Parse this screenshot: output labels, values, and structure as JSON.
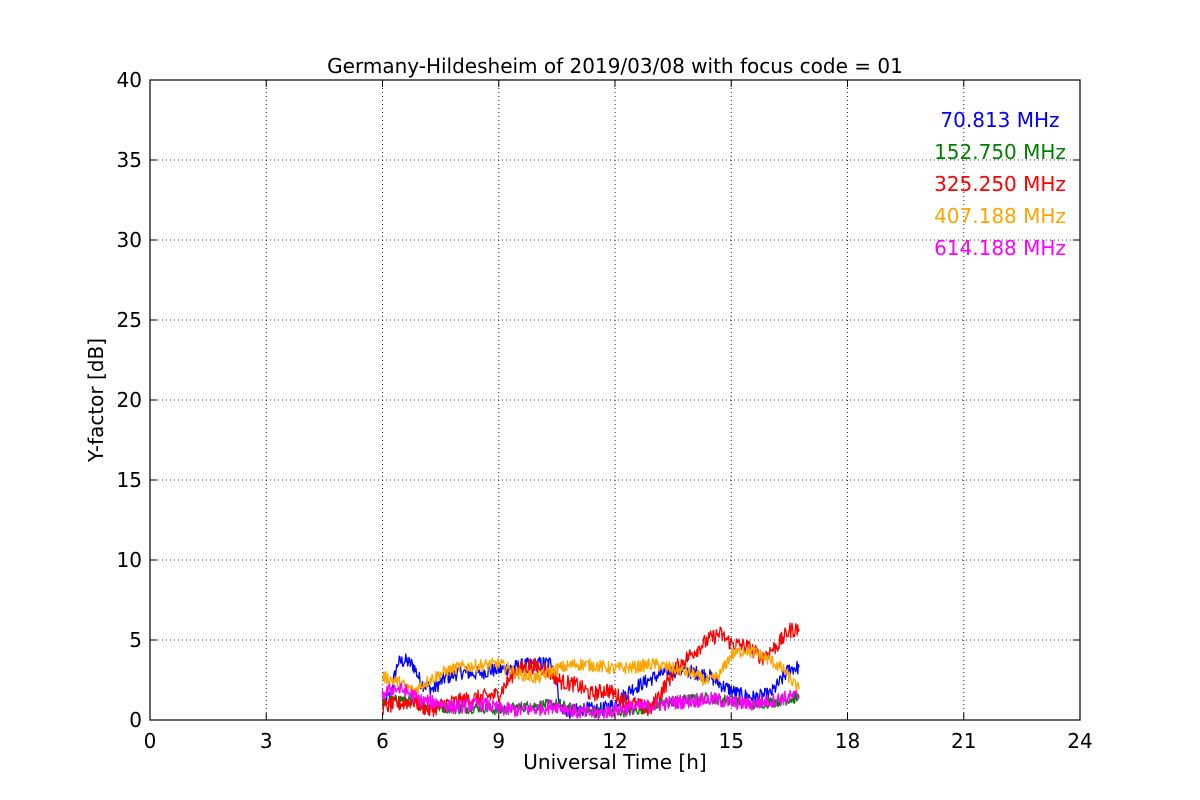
{
  "chart_data": {
    "type": "line",
    "title": "Germany-Hildesheim of 2019/03/08 with focus code = 01",
    "xlabel": "Universal Time [h]",
    "ylabel": "Y-factor [dB]",
    "xlim": [
      0,
      24
    ],
    "ylim": [
      0,
      40
    ],
    "xticks": [
      0,
      3,
      6,
      9,
      12,
      15,
      18,
      21,
      24
    ],
    "yticks": [
      0,
      5,
      10,
      15,
      20,
      25,
      30,
      35,
      40
    ],
    "grid": true,
    "legend_position": "top-right",
    "series": [
      {
        "name": "70.813 MHz",
        "color": "#0000ff",
        "x": [
          6.0,
          6.2,
          6.4,
          6.6,
          6.8,
          7.0,
          7.3,
          7.6,
          8.0,
          8.4,
          8.8,
          9.2,
          9.6,
          10.0,
          10.4,
          10.6,
          10.8,
          11.2,
          11.6,
          12.0,
          12.4,
          12.8,
          13.2,
          13.6,
          14.0,
          14.4,
          14.8,
          15.2,
          15.6,
          16.0,
          16.3,
          16.5,
          16.75
        ],
        "y": [
          0.9,
          1.6,
          3.6,
          3.7,
          3.4,
          2.3,
          1.9,
          2.6,
          3.0,
          2.9,
          3.1,
          3.2,
          3.4,
          3.5,
          3.6,
          0.8,
          0.5,
          0.7,
          0.6,
          1.0,
          1.9,
          2.4,
          2.9,
          3.1,
          3.0,
          2.8,
          2.1,
          1.6,
          1.4,
          1.6,
          2.5,
          3.2,
          3.3
        ],
        "noise": 0.45
      },
      {
        "name": "152.750 MHz",
        "color": "#008000",
        "x": [
          6.0,
          6.5,
          7.0,
          7.5,
          8.0,
          8.5,
          9.0,
          9.5,
          10.0,
          10.5,
          11.0,
          11.5,
          12.0,
          12.5,
          13.0,
          13.5,
          14.0,
          14.5,
          15.0,
          15.5,
          16.0,
          16.5,
          16.75
        ],
        "y": [
          1.1,
          1.3,
          1.0,
          0.8,
          0.7,
          0.8,
          0.6,
          0.8,
          0.9,
          1.0,
          0.6,
          0.5,
          0.5,
          0.6,
          0.9,
          1.2,
          1.3,
          1.4,
          1.2,
          1.0,
          1.1,
          1.3,
          1.4
        ],
        "noise": 0.35
      },
      {
        "name": "325.250 MHz",
        "color": "#ff0000",
        "x": [
          6.0,
          6.4,
          6.8,
          7.2,
          7.6,
          8.0,
          8.5,
          9.0,
          9.4,
          9.8,
          10.2,
          10.6,
          11.0,
          11.4,
          11.8,
          12.2,
          12.6,
          12.9,
          13.2,
          13.6,
          14.0,
          14.4,
          14.7,
          15.0,
          15.4,
          15.8,
          16.2,
          16.5,
          16.75
        ],
        "y": [
          0.8,
          1.0,
          1.2,
          0.6,
          1.0,
          1.2,
          1.4,
          1.6,
          3.0,
          3.4,
          3.2,
          2.4,
          2.2,
          1.6,
          1.9,
          1.3,
          0.9,
          0.6,
          1.8,
          3.3,
          4.2,
          5.0,
          5.4,
          4.8,
          4.6,
          3.9,
          4.7,
          5.6,
          5.7
        ],
        "noise": 0.5
      },
      {
        "name": "407.188 MHz",
        "color": "#ffa500",
        "x": [
          6.0,
          6.4,
          6.8,
          7.2,
          7.6,
          8.0,
          8.5,
          9.0,
          9.5,
          10.0,
          10.5,
          11.0,
          11.5,
          12.0,
          12.5,
          13.0,
          13.5,
          14.0,
          14.4,
          14.7,
          15.0,
          15.4,
          15.8,
          16.1,
          16.4,
          16.6,
          16.75
        ],
        "y": [
          2.7,
          2.4,
          1.8,
          2.5,
          3.0,
          3.3,
          3.4,
          3.5,
          2.9,
          2.6,
          3.2,
          3.5,
          3.4,
          3.2,
          3.3,
          3.5,
          3.2,
          2.9,
          2.4,
          2.8,
          4.1,
          4.4,
          4.0,
          3.6,
          3.0,
          2.3,
          1.9
        ],
        "noise": 0.4
      },
      {
        "name": "614.188 MHz",
        "color": "#ff00ff",
        "x": [
          6.0,
          6.3,
          6.6,
          7.0,
          7.4,
          7.8,
          8.2,
          8.6,
          9.0,
          9.5,
          10.0,
          10.5,
          11.0,
          11.5,
          12.0,
          12.5,
          13.0,
          13.5,
          14.0,
          14.5,
          15.0,
          15.5,
          16.0,
          16.4,
          16.75
        ],
        "y": [
          1.6,
          2.0,
          1.8,
          1.2,
          1.1,
          0.8,
          0.9,
          1.0,
          0.7,
          0.6,
          0.7,
          0.9,
          0.5,
          0.4,
          0.6,
          0.8,
          0.9,
          1.1,
          1.2,
          1.3,
          1.1,
          1.0,
          1.2,
          1.4,
          1.5
        ],
        "noise": 0.45
      }
    ]
  }
}
